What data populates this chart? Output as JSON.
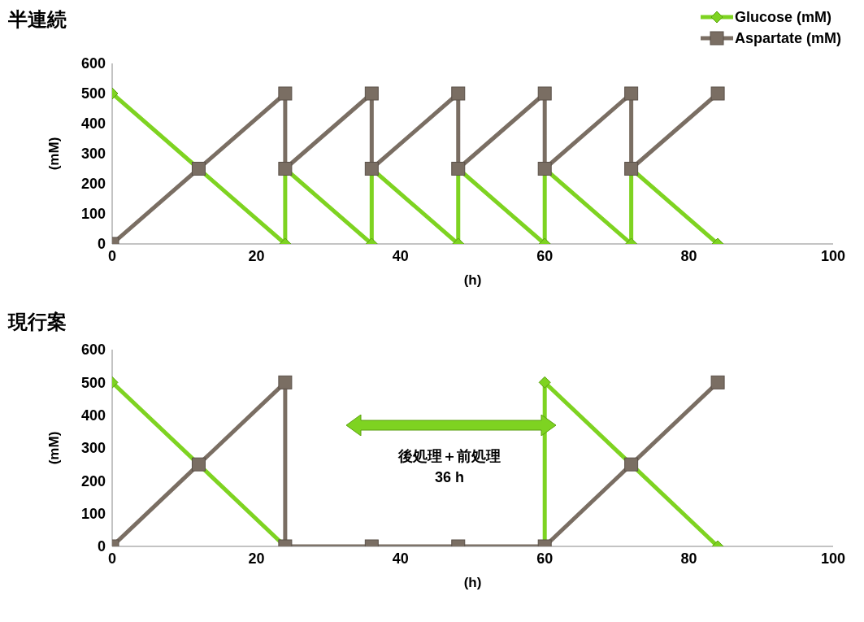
{
  "chart_data": [
    {
      "type": "line",
      "title": "半連続",
      "xlabel": "(h)",
      "ylabel": "(mM)",
      "xlim": [
        0,
        100
      ],
      "xticks": [
        0,
        20,
        40,
        60,
        80,
        100
      ],
      "ylim": [
        0,
        600
      ],
      "yticks": [
        0,
        100,
        200,
        300,
        400,
        500,
        600
      ],
      "legend": "top right",
      "series": [
        {
          "name": "Glucose (mM)",
          "color": "#7ed321",
          "marker": "diamond",
          "x": [
            0,
            12,
            24,
            24,
            36,
            36,
            48,
            48,
            60,
            60,
            72,
            72,
            84
          ],
          "values": [
            500,
            250,
            0,
            250,
            0,
            250,
            0,
            250,
            0,
            250,
            0,
            250,
            0
          ]
        },
        {
          "name": "Aspartate (mM)",
          "color": "#7a6e63",
          "marker": "square",
          "x": [
            0,
            12,
            24,
            24,
            36,
            36,
            48,
            48,
            60,
            60,
            72,
            72,
            84
          ],
          "values": [
            0,
            250,
            500,
            250,
            500,
            250,
            500,
            250,
            500,
            250,
            500,
            250,
            500
          ]
        }
      ]
    },
    {
      "type": "line",
      "title": "現行案",
      "xlabel": "(h)",
      "ylabel": "(mM)",
      "xlim": [
        0,
        100
      ],
      "xticks": [
        0,
        20,
        40,
        60,
        80,
        100
      ],
      "ylim": [
        0,
        600
      ],
      "yticks": [
        0,
        100,
        200,
        300,
        400,
        500,
        600
      ],
      "annotations": [
        "後処理＋前処理\n36 h"
      ],
      "series": [
        {
          "color": "#7ed321",
          "marker": "diamond",
          "x": [
            0,
            12,
            24,
            36,
            60,
            60,
            72,
            84
          ],
          "values": [
            500,
            250,
            0,
            null,
            0,
            500,
            250,
            0
          ]
        },
        {
          "color": "#7a6e63",
          "marker": "square",
          "x": [
            0,
            12,
            24,
            24,
            36,
            48,
            60,
            72,
            84
          ],
          "values": [
            0,
            250,
            500,
            0,
            0,
            0,
            0,
            250,
            500
          ]
        }
      ]
    }
  ]
}
